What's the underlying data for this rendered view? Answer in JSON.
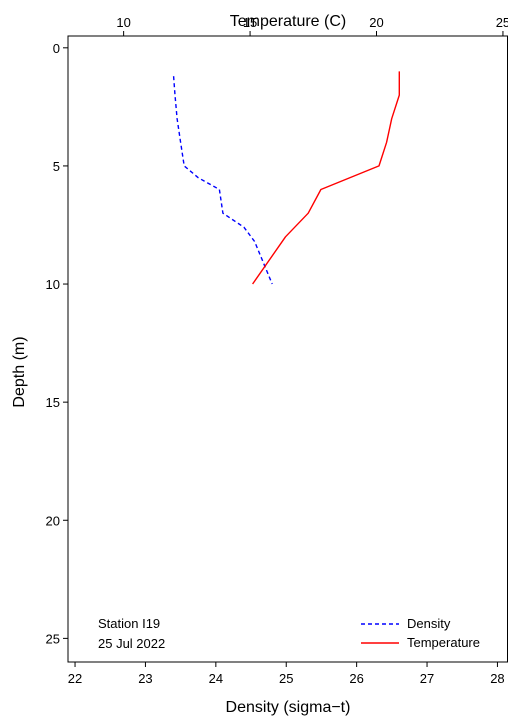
{
  "chart_data": {
    "type": "line",
    "station": [
      "Station I19",
      "25 Jul 2022"
    ],
    "x_bottom": {
      "label": "Density (sigma−t)",
      "range": [
        21.9,
        28.15
      ],
      "ticks": [
        22,
        23,
        24,
        25,
        26,
        27,
        28
      ]
    },
    "x_top": {
      "label": "Temperature (C)",
      "range": [
        7.8,
        25.2
      ],
      "ticks": [
        10,
        15,
        20,
        25
      ]
    },
    "y": {
      "label": "Depth (m)",
      "range": [
        -0.5,
        26
      ],
      "ticks": [
        0,
        5,
        10,
        15,
        20,
        25
      ],
      "inverted": true
    },
    "grid": false,
    "legend_position": "bottom-right",
    "series": [
      {
        "name": "Density",
        "axis": "bottom",
        "color": "#0000FF",
        "dash": "dashed",
        "points": [
          {
            "value": 23.4,
            "depth": 1.2
          },
          {
            "value": 23.42,
            "depth": 2.0
          },
          {
            "value": 23.45,
            "depth": 3.0
          },
          {
            "value": 23.5,
            "depth": 4.0
          },
          {
            "value": 23.55,
            "depth": 5.0
          },
          {
            "value": 23.75,
            "depth": 5.5
          },
          {
            "value": 24.05,
            "depth": 6.0
          },
          {
            "value": 24.1,
            "depth": 7.0
          },
          {
            "value": 24.4,
            "depth": 7.6
          },
          {
            "value": 24.55,
            "depth": 8.2
          },
          {
            "value": 24.8,
            "depth": 10.0
          }
        ]
      },
      {
        "name": "Temperature",
        "axis": "top",
        "color": "#FF0000",
        "dash": "solid",
        "points": [
          {
            "value": 20.9,
            "depth": 1.0
          },
          {
            "value": 20.9,
            "depth": 2.0
          },
          {
            "value": 20.6,
            "depth": 3.0
          },
          {
            "value": 20.4,
            "depth": 4.0
          },
          {
            "value": 20.1,
            "depth": 5.0
          },
          {
            "value": 17.8,
            "depth": 6.0
          },
          {
            "value": 17.3,
            "depth": 7.0
          },
          {
            "value": 16.4,
            "depth": 8.0
          },
          {
            "value": 15.1,
            "depth": 10.0
          }
        ]
      }
    ]
  }
}
